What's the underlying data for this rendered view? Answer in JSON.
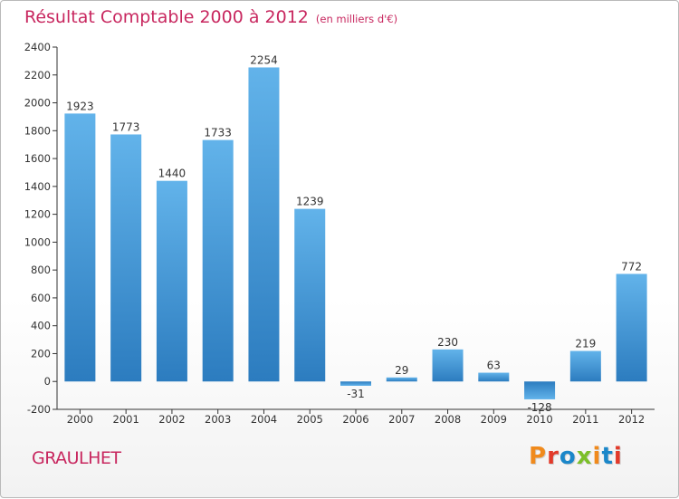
{
  "header": {
    "title": "Résultat Comptable 2000 à 2012",
    "subtitle": "(en milliers d'€)"
  },
  "footer": {
    "city": "GRAULHET",
    "logo": "Proxiti",
    "logo_colors": [
      "#f08a1c",
      "#e23a2a",
      "#1b87c9",
      "#7cbf2a",
      "#f08a1c",
      "#1b87c9",
      "#e23a2a"
    ]
  },
  "colors": {
    "bar_top": "#62b3ea",
    "bar_bottom": "#2c7cbf",
    "accent": "#c8275f"
  },
  "chart_data": {
    "type": "bar",
    "title": "Résultat Comptable 2000 à 2012",
    "xlabel": "",
    "ylabel": "en milliers d'€",
    "categories": [
      "2000",
      "2001",
      "2002",
      "2003",
      "2004",
      "2005",
      "2006",
      "2007",
      "2008",
      "2009",
      "2010",
      "2011",
      "2012"
    ],
    "values": [
      1923,
      1773,
      1440,
      1733,
      2254,
      1239,
      -31,
      29,
      230,
      63,
      -128,
      219,
      772
    ],
    "ylim": [
      -200,
      2400
    ],
    "yticks": [
      -200,
      0,
      200,
      400,
      600,
      800,
      1000,
      1200,
      1400,
      1600,
      1800,
      2000,
      2200,
      2400
    ],
    "grid": false,
    "legend": "none"
  }
}
